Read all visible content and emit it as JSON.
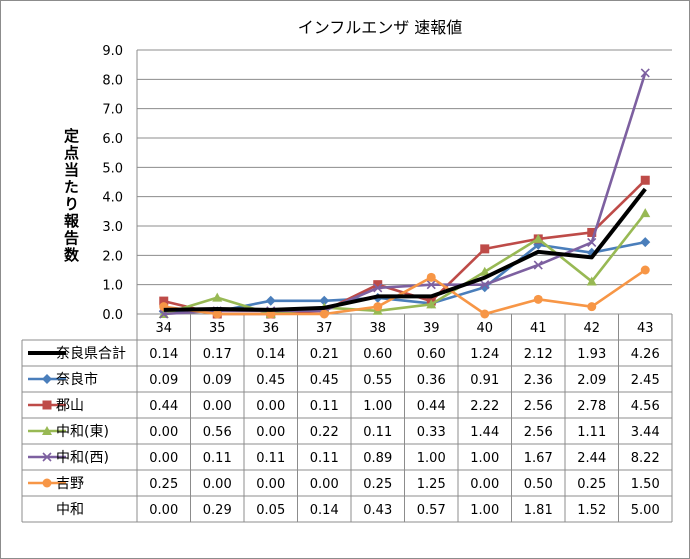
{
  "chart_data": {
    "type": "line",
    "title": "インフルエンザ 速報値",
    "xlabel": "",
    "ylabel": "定点当たり報告数",
    "categories": [
      "34",
      "35",
      "36",
      "37",
      "38",
      "39",
      "40",
      "41",
      "42",
      "43"
    ],
    "ylim": [
      0,
      9
    ],
    "yticks": [
      "0.0",
      "1.0",
      "2.0",
      "3.0",
      "4.0",
      "5.0",
      "6.0",
      "7.0",
      "8.0",
      "9.0"
    ],
    "grid": true,
    "legend": "data-table-left",
    "series": [
      {
        "name": "奈良県合計",
        "values": [
          0.14,
          0.17,
          0.14,
          0.21,
          0.6,
          0.6,
          1.24,
          2.12,
          1.93,
          4.26
        ],
        "labels": [
          "0.14",
          "0.17",
          "0.14",
          "0.21",
          "0.60",
          "0.60",
          "1.24",
          "2.12",
          "1.93",
          "4.26"
        ],
        "color": "#000000",
        "marker": "none",
        "line": true
      },
      {
        "name": "奈良市",
        "values": [
          0.09,
          0.09,
          0.45,
          0.45,
          0.55,
          0.36,
          0.91,
          2.36,
          2.09,
          2.45
        ],
        "labels": [
          "0.09",
          "0.09",
          "0.45",
          "0.45",
          "0.55",
          "0.36",
          "0.91",
          "2.36",
          "2.09",
          "2.45"
        ],
        "color": "#4a7ebb",
        "marker": "diamond",
        "line": true
      },
      {
        "name": "郡山",
        "values": [
          0.44,
          0.0,
          0.0,
          0.11,
          1.0,
          0.44,
          2.22,
          2.56,
          2.78,
          4.56
        ],
        "labels": [
          "0.44",
          "0.00",
          "0.00",
          "0.11",
          "1.00",
          "0.44",
          "2.22",
          "2.56",
          "2.78",
          "4.56"
        ],
        "color": "#be4b48",
        "marker": "square",
        "line": true
      },
      {
        "name": "中和(東)",
        "values": [
          0.0,
          0.56,
          0.0,
          0.22,
          0.11,
          0.33,
          1.44,
          2.56,
          1.11,
          3.44
        ],
        "labels": [
          "0.00",
          "0.56",
          "0.00",
          "0.22",
          "0.11",
          "0.33",
          "1.44",
          "2.56",
          "1.11",
          "3.44"
        ],
        "color": "#98b954",
        "marker": "triangle",
        "line": true
      },
      {
        "name": "中和(西)",
        "values": [
          0.0,
          0.11,
          0.11,
          0.11,
          0.89,
          1.0,
          1.0,
          1.67,
          2.44,
          8.22
        ],
        "labels": [
          "0.00",
          "0.11",
          "0.11",
          "0.11",
          "0.89",
          "1.00",
          "1.00",
          "1.67",
          "2.44",
          "8.22"
        ],
        "color": "#7d60a0",
        "marker": "x",
        "line": true
      },
      {
        "name": "吉野",
        "values": [
          0.25,
          0.0,
          0.0,
          0.0,
          0.25,
          1.25,
          0.0,
          0.5,
          0.25,
          1.5
        ],
        "labels": [
          "0.25",
          "0.00",
          "0.00",
          "0.00",
          "0.25",
          "1.25",
          "0.00",
          "0.50",
          "0.25",
          "1.50"
        ],
        "color": "#f79646",
        "marker": "circle",
        "line": true
      },
      {
        "name": "中和",
        "values": [
          0.0,
          0.29,
          0.05,
          0.14,
          0.43,
          0.57,
          1.0,
          1.81,
          1.52,
          5.0
        ],
        "labels": [
          "0.00",
          "0.29",
          "0.05",
          "0.14",
          "0.43",
          "0.57",
          "1.00",
          "1.81",
          "1.52",
          "5.00"
        ],
        "color": "#000000",
        "marker": "none",
        "line": false
      }
    ]
  }
}
